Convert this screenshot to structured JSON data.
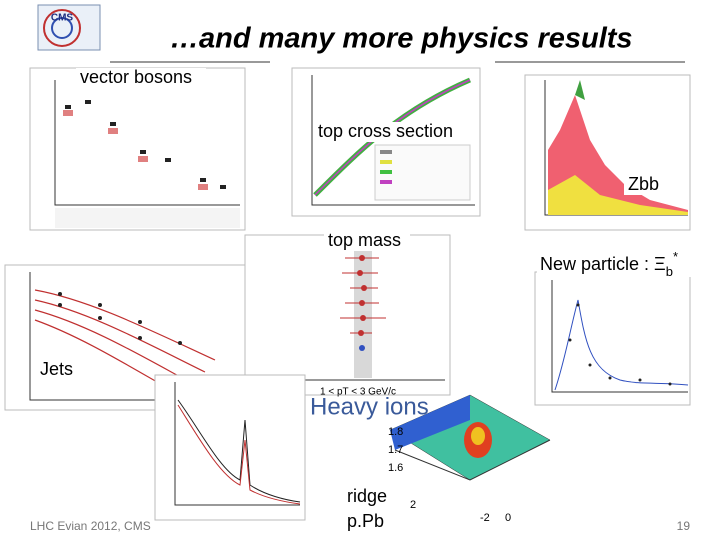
{
  "logo": "CMS",
  "title": "…and many more physics results",
  "labels": {
    "vector_bosons": "vector bosons",
    "top_cross_section": "top cross section",
    "zbb": "Zbb",
    "top_mass": "top mass",
    "new_particle": {
      "main": "New particle : Ξ",
      "sub": "b",
      "sup": "*"
    },
    "jets": "Jets",
    "heavy_ions": "Heavy ions",
    "ridge": "ridge",
    "ppb": "p.Pb"
  },
  "ridge": {
    "note": "1 < pT < 3 GeV/c",
    "yticks": [
      "1.8",
      "1.7",
      "1.6"
    ],
    "xticks": [
      "2",
      "-2",
      "0"
    ]
  },
  "footer": {
    "text": "LHC Evian 2012, CMS",
    "page": "19"
  }
}
